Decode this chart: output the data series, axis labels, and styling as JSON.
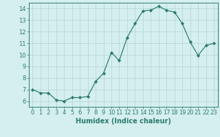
{
  "x": [
    0,
    1,
    2,
    3,
    4,
    5,
    6,
    7,
    8,
    9,
    10,
    11,
    12,
    13,
    14,
    15,
    16,
    17,
    18,
    19,
    20,
    21,
    22,
    23
  ],
  "y": [
    7.0,
    6.7,
    6.7,
    6.1,
    6.0,
    6.3,
    6.3,
    6.4,
    7.7,
    8.4,
    10.2,
    9.5,
    11.5,
    12.7,
    13.8,
    13.85,
    14.2,
    13.85,
    13.7,
    12.7,
    11.1,
    9.95,
    10.8,
    11.0
  ],
  "xlabel": "Humidex (Indice chaleur)",
  "xlim": [
    -0.5,
    23.5
  ],
  "ylim": [
    5.5,
    14.5
  ],
  "yticks": [
    6,
    7,
    8,
    9,
    10,
    11,
    12,
    13,
    14
  ],
  "xticks": [
    0,
    1,
    2,
    3,
    4,
    5,
    6,
    7,
    8,
    9,
    10,
    11,
    12,
    13,
    14,
    15,
    16,
    17,
    18,
    19,
    20,
    21,
    22,
    23
  ],
  "line_color": "#2d7a6e",
  "marker": "D",
  "marker_size": 2.2,
  "bg_color": "#d4efee",
  "grid_color": "#b8d8d5",
  "axis_color": "#2d7a6e",
  "tick_color": "#2d7a6e",
  "label_color": "#2d7a6e",
  "xlabel_fontsize": 7,
  "tick_fontsize": 6
}
